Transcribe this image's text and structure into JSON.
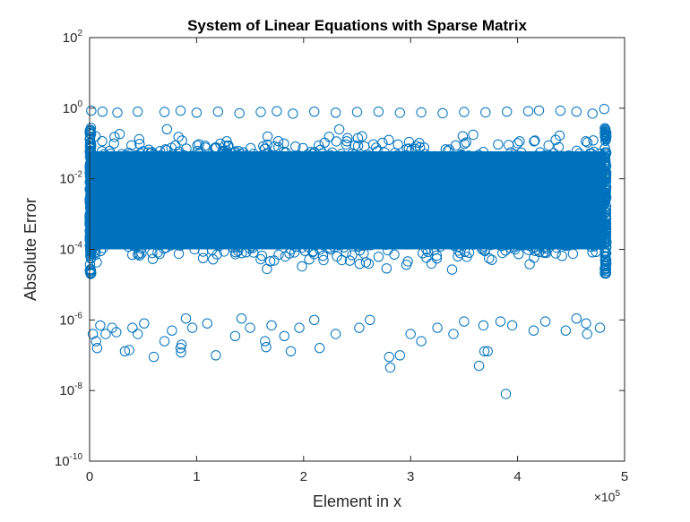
{
  "chart_data": {
    "type": "scatter",
    "title": "System of Linear Equations with Sparse Matrix",
    "xlabel": "Element in x",
    "ylabel": "Absolute Error",
    "x_multiplier_label": {
      "base": "×10",
      "exp": "5"
    },
    "xlim": [
      0,
      500000
    ],
    "ylim": [
      1e-10,
      100
    ],
    "yscale": "log",
    "x_ticks": [
      {
        "value": 0,
        "label": "0"
      },
      {
        "value": 100000,
        "label": "1"
      },
      {
        "value": 200000,
        "label": "2"
      },
      {
        "value": 300000,
        "label": "3"
      },
      {
        "value": 400000,
        "label": "4"
      },
      {
        "value": 500000,
        "label": "5"
      }
    ],
    "y_ticks": [
      {
        "value": 1e-10,
        "base": "10",
        "exp": "-10"
      },
      {
        "value": 1e-08,
        "base": "10",
        "exp": "-8"
      },
      {
        "value": 1e-06,
        "base": "10",
        "exp": "-6"
      },
      {
        "value": 0.0001,
        "base": "10",
        "exp": "-4"
      },
      {
        "value": 0.01,
        "base": "10",
        "exp": "-2"
      },
      {
        "value": 1,
        "base": "10",
        "exp": "0"
      },
      {
        "value": 100,
        "base": "10",
        "exp": "2"
      }
    ],
    "grid": false,
    "marker": "open-circle",
    "color": "#0072BD",
    "series": [
      {
        "dense_band": {
          "x_range": [
            0,
            483000
          ],
          "y_range": [
            2e-05,
            0.3
          ],
          "approx_count": 480000
        },
        "upper_outliers": [
          [
            1500,
            0.85
          ],
          [
            12000,
            0.8
          ],
          [
            26000,
            0.75
          ],
          [
            45000,
            0.8
          ],
          [
            70000,
            0.78
          ],
          [
            85000,
            0.85
          ],
          [
            100000,
            0.75
          ],
          [
            120000,
            0.8
          ],
          [
            140000,
            0.72
          ],
          [
            160000,
            0.78
          ],
          [
            175000,
            0.82
          ],
          [
            190000,
            0.7
          ],
          [
            210000,
            0.8
          ],
          [
            230000,
            0.75
          ],
          [
            250000,
            0.78
          ],
          [
            270000,
            0.8
          ],
          [
            290000,
            0.74
          ],
          [
            310000,
            0.76
          ],
          [
            330000,
            0.72
          ],
          [
            350000,
            0.78
          ],
          [
            370000,
            0.76
          ],
          [
            390000,
            0.8
          ],
          [
            410000,
            0.82
          ],
          [
            420000,
            0.86
          ],
          [
            440000,
            0.85
          ],
          [
            455000,
            0.8
          ],
          [
            470000,
            0.7
          ],
          [
            481000,
            0.95
          ]
        ],
        "lower_outliers": [
          [
            3000,
            4e-07
          ],
          [
            6000,
            2.5e-07
          ],
          [
            7000,
            1.6e-07
          ],
          [
            10000,
            7e-07
          ],
          [
            15000,
            4e-07
          ],
          [
            21000,
            6e-07
          ],
          [
            25000,
            4.5e-07
          ],
          [
            33000,
            1.3e-07
          ],
          [
            37000,
            1.4e-07
          ],
          [
            40000,
            6e-07
          ],
          [
            45000,
            4e-07
          ],
          [
            51000,
            8e-07
          ],
          [
            60000,
            9e-08
          ],
          [
            70000,
            2.5e-07
          ],
          [
            77000,
            5e-07
          ],
          [
            85000,
            1.6e-07
          ],
          [
            85500,
            1.2e-07
          ],
          [
            86000,
            2e-07
          ],
          [
            90000,
            1.1e-06
          ],
          [
            96000,
            6e-07
          ],
          [
            110000,
            8e-07
          ],
          [
            118000,
            1e-07
          ],
          [
            136000,
            3.5e-07
          ],
          [
            142000,
            1.1e-06
          ],
          [
            150000,
            6e-07
          ],
          [
            164000,
            2.5e-07
          ],
          [
            165000,
            1.7e-07
          ],
          [
            170000,
            7e-07
          ],
          [
            182000,
            3.5e-07
          ],
          [
            188000,
            1.3e-07
          ],
          [
            196000,
            6e-07
          ],
          [
            210000,
            1e-06
          ],
          [
            215000,
            1.6e-07
          ],
          [
            230000,
            4e-07
          ],
          [
            252000,
            6e-07
          ],
          [
            262000,
            1e-06
          ],
          [
            280000,
            9e-08
          ],
          [
            281000,
            4.5e-08
          ],
          [
            290000,
            1e-07
          ],
          [
            300000,
            4e-07
          ],
          [
            310000,
            2.5e-07
          ],
          [
            325000,
            6e-07
          ],
          [
            340000,
            4e-07
          ],
          [
            350000,
            9e-07
          ],
          [
            364000,
            5e-08
          ],
          [
            368000,
            7e-07
          ],
          [
            369000,
            1.3e-07
          ],
          [
            372000,
            1.3e-07
          ],
          [
            384000,
            9e-07
          ],
          [
            389000,
            8e-09
          ],
          [
            395000,
            7e-07
          ],
          [
            415000,
            5e-07
          ],
          [
            426000,
            9e-07
          ],
          [
            445000,
            5e-07
          ],
          [
            455000,
            1.1e-06
          ],
          [
            464000,
            8e-07
          ],
          [
            465000,
            4e-07
          ],
          [
            477000,
            6e-07
          ]
        ]
      }
    ]
  }
}
